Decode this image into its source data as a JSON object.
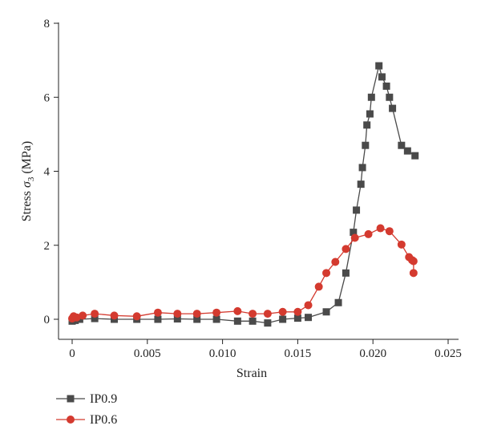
{
  "chart_data": {
    "type": "line",
    "xlabel": "Strain",
    "ylabel_text": "Stress ",
    "ylabel_symbol": "σ",
    "ylabel_subscript": "3",
    "ylabel_unit": " (MPa)",
    "xlim": [
      0,
      0.025
    ],
    "ylim": [
      0,
      8
    ],
    "xticks": [
      0,
      0.005,
      0.01,
      0.015,
      0.02,
      0.025
    ],
    "xtick_labels": [
      "0",
      "0.005",
      "0.010",
      "0.015",
      "0.020",
      "0.025"
    ],
    "yticks": [
      0,
      2,
      4,
      6,
      8
    ],
    "ytick_labels": [
      "0",
      "2",
      "4",
      "6",
      "8"
    ],
    "grid": false,
    "legend_position": "bottom-left, below plot",
    "series": [
      {
        "name": "IP0.9",
        "color": "#4a4a4a",
        "marker": "square",
        "x": [
          0,
          0.0002,
          0.0005,
          0.0015,
          0.0028,
          0.0043,
          0.0057,
          0.007,
          0.0083,
          0.0096,
          0.011,
          0.012,
          0.013,
          0.014,
          0.015,
          0.0157,
          0.0169,
          0.0177,
          0.0182,
          0.0187,
          0.0189,
          0.0192,
          0.0193,
          0.0195,
          0.0196,
          0.0198,
          0.0199,
          0.0204,
          0.0206,
          0.0209,
          0.0211,
          0.0213,
          0.0219,
          0.0223,
          0.0228
        ],
        "y": [
          -0.05,
          -0.03,
          0.0,
          0.02,
          0.0,
          0.0,
          0.0,
          0.01,
          0.0,
          0.0,
          -0.05,
          -0.05,
          -0.1,
          0.0,
          0.03,
          0.05,
          0.2,
          0.45,
          1.25,
          2.35,
          2.95,
          3.65,
          4.1,
          4.7,
          5.25,
          5.55,
          6.0,
          6.85,
          6.55,
          6.3,
          6.0,
          5.7,
          4.7,
          4.55,
          4.42
        ]
      },
      {
        "name": "IP0.6",
        "color": "#d43a2f",
        "marker": "circle",
        "x": [
          0,
          0.0001,
          0.0003,
          0.0007,
          0.0015,
          0.0028,
          0.0043,
          0.0057,
          0.007,
          0.0083,
          0.0096,
          0.011,
          0.012,
          0.013,
          0.014,
          0.015,
          0.0157,
          0.0164,
          0.0169,
          0.0175,
          0.0182,
          0.0188,
          0.0197,
          0.0205,
          0.0211,
          0.0219,
          0.0224,
          0.0226,
          0.0227,
          0.0227
        ],
        "y": [
          0.02,
          0.08,
          0.05,
          0.1,
          0.15,
          0.1,
          0.08,
          0.18,
          0.15,
          0.15,
          0.18,
          0.22,
          0.15,
          0.15,
          0.2,
          0.2,
          0.38,
          0.88,
          1.25,
          1.55,
          1.9,
          2.2,
          2.3,
          2.46,
          2.38,
          2.02,
          1.68,
          1.6,
          1.57,
          1.25
        ]
      }
    ]
  }
}
